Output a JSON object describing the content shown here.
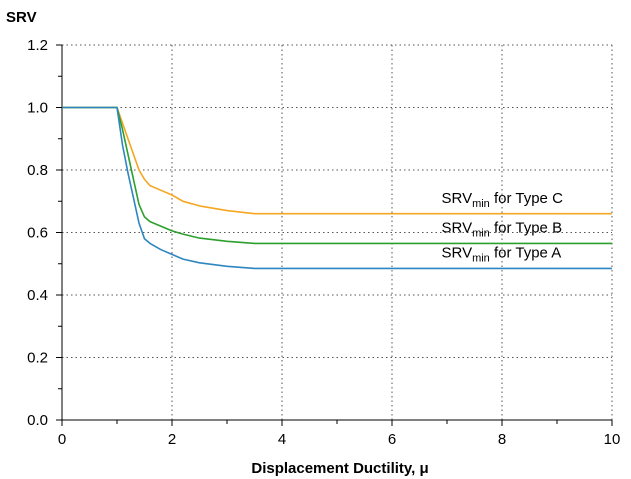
{
  "chart_data": {
    "type": "line",
    "ylabel": "SRV",
    "xlabel": "Displacement Ductility, μ",
    "xlim": [
      0,
      10
    ],
    "ylim": [
      0,
      1.2
    ],
    "x_ticks": [
      0,
      2,
      4,
      6,
      8,
      10
    ],
    "x_tick_labels": [
      "0",
      "2",
      "4",
      "6",
      "8",
      "10"
    ],
    "y_ticks": [
      0,
      0.2,
      0.4,
      0.6,
      0.8,
      1.0,
      1.2
    ],
    "y_tick_labels": [
      "0.0",
      "0.2",
      "0.4",
      "0.6",
      "0.8",
      "1.0",
      "1.2"
    ],
    "grid": true,
    "series": [
      {
        "label_main": "SRV",
        "label_sub": "min",
        "label_rest": " for Type C",
        "color": "#f5a623",
        "x": [
          0,
          1.0,
          1.1,
          1.2,
          1.3,
          1.4,
          1.5,
          1.6,
          1.8,
          2.0,
          2.2,
          2.5,
          3.0,
          3.5,
          10
        ],
        "y": [
          1.0,
          1.0,
          0.95,
          0.9,
          0.85,
          0.8,
          0.77,
          0.75,
          0.735,
          0.72,
          0.7,
          0.685,
          0.67,
          0.66,
          0.66
        ]
      },
      {
        "label_main": "SRV",
        "label_sub": "min",
        "label_rest": " for Type B",
        "color": "#2ca02c",
        "x": [
          0,
          1.0,
          1.1,
          1.2,
          1.3,
          1.4,
          1.5,
          1.6,
          1.8,
          2.0,
          2.2,
          2.5,
          3.0,
          3.5,
          10
        ],
        "y": [
          1.0,
          1.0,
          0.93,
          0.85,
          0.77,
          0.69,
          0.65,
          0.635,
          0.62,
          0.605,
          0.595,
          0.582,
          0.572,
          0.565,
          0.565
        ]
      },
      {
        "label_main": "SRV",
        "label_sub": "min",
        "label_rest": " for Type A",
        "color": "#2e86c1",
        "x": [
          0,
          1.0,
          1.1,
          1.2,
          1.3,
          1.4,
          1.5,
          1.6,
          1.8,
          2.0,
          2.2,
          2.5,
          3.0,
          3.5,
          10
        ],
        "y": [
          1.0,
          1.0,
          0.88,
          0.79,
          0.71,
          0.63,
          0.58,
          0.565,
          0.545,
          0.53,
          0.515,
          0.503,
          0.492,
          0.485,
          0.485
        ]
      }
    ],
    "label_positions_data": [
      {
        "x": 6.9,
        "y": 0.695
      },
      {
        "x": 6.9,
        "y": 0.6
      },
      {
        "x": 6.9,
        "y": 0.52
      }
    ]
  }
}
